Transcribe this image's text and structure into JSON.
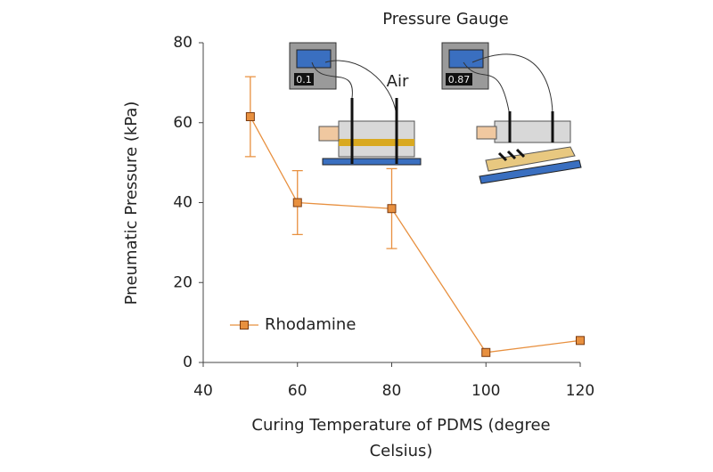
{
  "chart_data": {
    "type": "line",
    "y_label": "Pneumatic Pressure (kPa)",
    "x_label_lines": [
      "Curing Temperature of PDMS (degree",
      "Celsius)"
    ],
    "x": [
      50,
      60,
      80,
      100,
      120
    ],
    "series": [
      {
        "name": "Rhodamine",
        "color": "#e8903f",
        "values": [
          61.5,
          40,
          38.5,
          2.5,
          5.5
        ],
        "errors": [
          10,
          8,
          10,
          null,
          null
        ]
      }
    ],
    "xlim": [
      40,
      120
    ],
    "xticks": [
      40,
      60,
      80,
      100,
      120
    ],
    "ylim": [
      0,
      80
    ],
    "yticks": [
      0,
      20,
      40,
      60,
      80
    ],
    "grid": false,
    "legend": "lower left",
    "annotations": {
      "inset_title": "Pressure Gauge",
      "air": "Air",
      "gauge_left": "0.1",
      "gauge_right": "0.87"
    }
  }
}
